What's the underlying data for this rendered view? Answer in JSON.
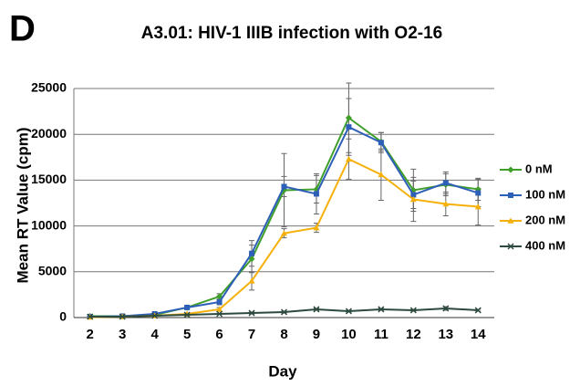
{
  "chart_data": {
    "type": "line",
    "panel_label": "D",
    "title": "A3.01: HIV-1 IIIB infection with O2-16",
    "x_label": "Day",
    "y_label": "Mean RT Value (cpm)",
    "categories": [
      "2",
      "3",
      "4",
      "5",
      "6",
      "7",
      "8",
      "9",
      "10",
      "11",
      "12",
      "13",
      "14"
    ],
    "series": [
      {
        "name": "0 nM",
        "color": "#3f9f2a",
        "marker": "diamond",
        "values": [
          150,
          150,
          300,
          1100,
          2300,
          6400,
          13900,
          14000,
          21800,
          19200,
          13900,
          14500,
          14000
        ],
        "errors": [
          0,
          0,
          100,
          200,
          300,
          1500,
          4000,
          1500,
          3800,
          1000,
          2300,
          1200,
          1200
        ]
      },
      {
        "name": "100 nM",
        "color": "#2e5fb8",
        "marker": "square",
        "values": [
          100,
          150,
          400,
          1100,
          1700,
          7000,
          14300,
          13500,
          20800,
          19100,
          13400,
          14700,
          13600
        ],
        "errors": [
          0,
          0,
          100,
          200,
          300,
          1400,
          1100,
          2200,
          3100,
          1100,
          1500,
          1200,
          1500
        ]
      },
      {
        "name": "200 nM",
        "color": "#f5b10a",
        "marker": "triangle",
        "values": [
          50,
          100,
          200,
          400,
          900,
          4000,
          9200,
          9800,
          17300,
          15600,
          12900,
          12400,
          12100
        ],
        "errors": [
          0,
          0,
          50,
          100,
          200,
          1000,
          500,
          500,
          2200,
          2800,
          2400,
          1300,
          2000
        ]
      },
      {
        "name": "400 nM",
        "color": "#2d4a3e",
        "marker": "x",
        "values": [
          100,
          100,
          200,
          300,
          400,
          500,
          600,
          900,
          700,
          900,
          800,
          1000,
          800
        ],
        "errors": [
          0,
          0,
          0,
          0,
          0,
          100,
          100,
          100,
          100,
          100,
          100,
          200,
          100
        ]
      }
    ],
    "ylim": [
      0,
      25000
    ],
    "yticks": [
      0,
      5000,
      10000,
      15000,
      20000,
      25000
    ],
    "grid": true,
    "legend": "right"
  }
}
